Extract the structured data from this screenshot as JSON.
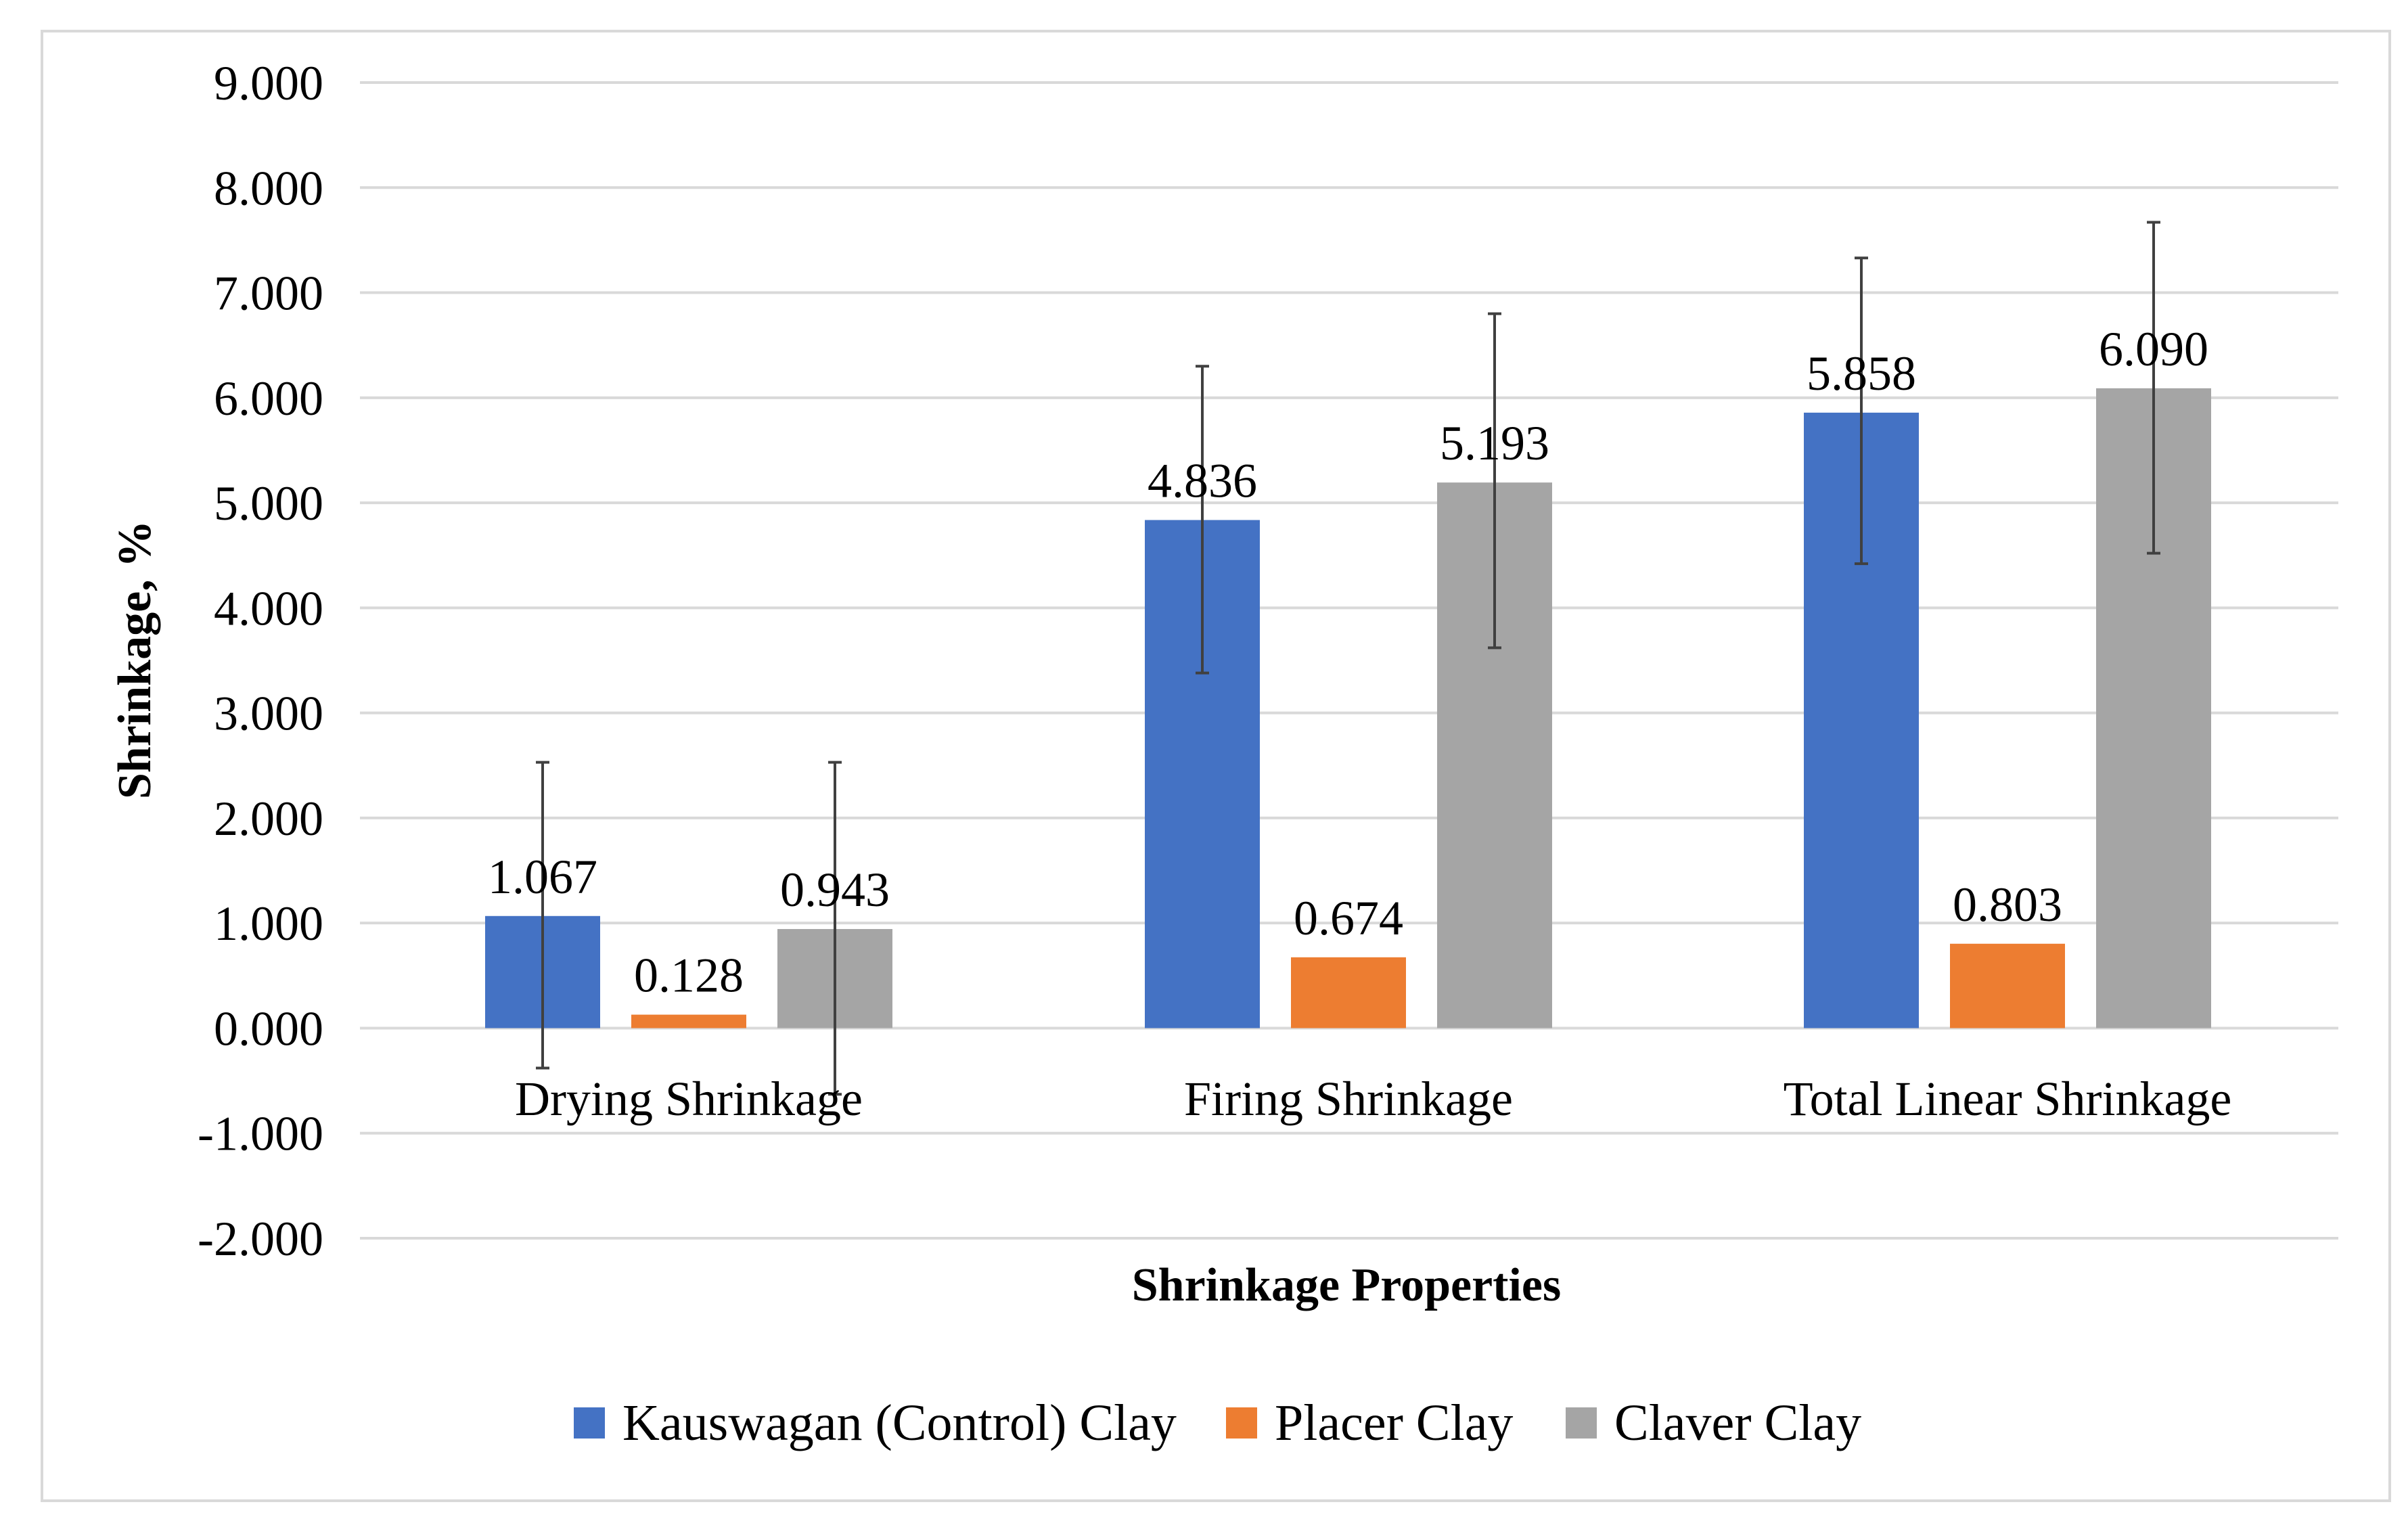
{
  "chart_data": {
    "type": "bar",
    "title": "",
    "xlabel": "Shrinkage Properties",
    "ylabel": "Shrinkage, %",
    "ylim": [
      -2,
      9
    ],
    "ytick_step": 1,
    "ytick_labels": [
      "-2.000",
      "-1.000",
      "0.000",
      "1.000",
      "2.000",
      "3.000",
      "4.000",
      "5.000",
      "6.000",
      "7.000",
      "8.000",
      "9.000"
    ],
    "grid": true,
    "legend_position": "bottom",
    "categories": [
      "Drying Shrinkage",
      "Firing Shrinkage",
      "Total Linear Shrinkage"
    ],
    "series": [
      {
        "name": "Kauswagan (Control) Clay",
        "color": "#4472C4",
        "values": [
          1.067,
          4.836,
          5.858
        ],
        "labels": [
          "1.067",
          "4.836",
          "5.858"
        ],
        "error_low": [
          -0.38,
          3.38,
          4.42
        ],
        "error_high": [
          2.53,
          6.3,
          7.33
        ],
        "has_error_bars": true
      },
      {
        "name": "Placer Clay",
        "color": "#ED7D31",
        "values": [
          0.128,
          0.674,
          0.803
        ],
        "labels": [
          "0.128",
          "0.674",
          "0.803"
        ],
        "has_error_bars": false
      },
      {
        "name": "Claver Clay",
        "color": "#A5A5A5",
        "values": [
          0.943,
          5.193,
          6.09
        ],
        "labels": [
          "0.943",
          "5.193",
          "6.090"
        ],
        "error_low": [
          -0.63,
          3.62,
          4.52
        ],
        "error_high": [
          2.53,
          6.8,
          7.67
        ],
        "has_error_bars": true
      }
    ]
  },
  "colors": {
    "gridline": "#D9D9D9",
    "frame": "#D9D9D9",
    "error_bar": "#404040"
  }
}
